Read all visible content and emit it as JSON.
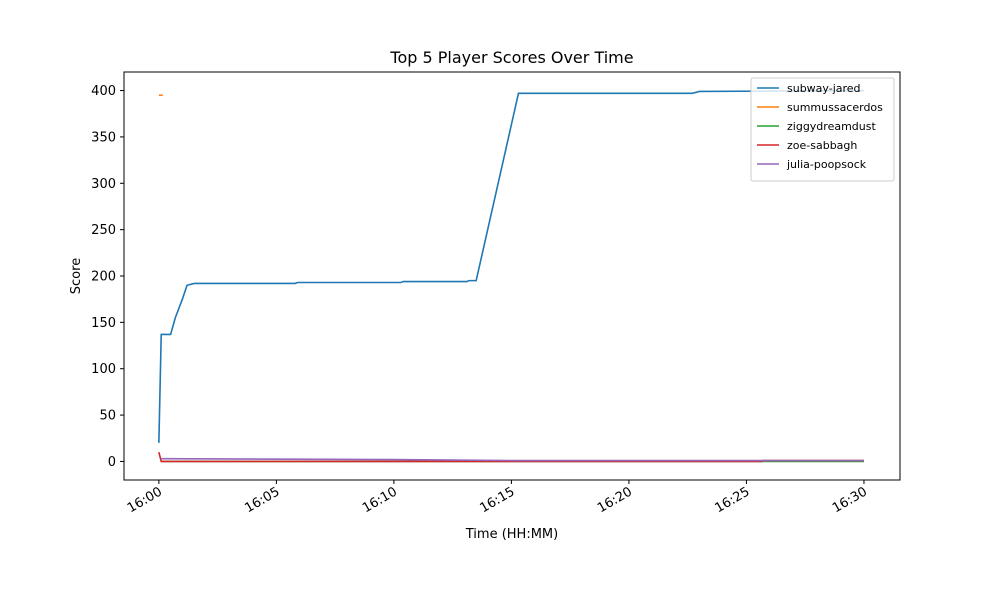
{
  "chart_data": {
    "type": "line",
    "title": "Top 5 Player Scores Over Time",
    "x_label": "Time (HH:MM)",
    "y_label": "Score",
    "xlim": [
      "15:58:31",
      "16:31:32"
    ],
    "ylim": [
      -20,
      420
    ],
    "xticks": [
      "16:00",
      "16:05",
      "16:10",
      "16:15",
      "16:20",
      "16:25",
      "16:30"
    ],
    "yticks": [
      0,
      50,
      100,
      150,
      200,
      250,
      300,
      350,
      400
    ],
    "legend": "upper right",
    "series": [
      {
        "name": "subway-jared",
        "color": "#1f77b4",
        "x": [
          "16:00:00",
          "16:00:06",
          "16:00:30",
          "16:00:42",
          "16:01:00",
          "16:01:12",
          "16:01:30",
          "16:05:48",
          "16:05:54",
          "16:10:18",
          "16:10:24",
          "16:13:06",
          "16:13:12",
          "16:13:30",
          "16:15:18",
          "16:22:42",
          "16:23:00",
          "16:30:00"
        ],
        "values": [
          20,
          137,
          137,
          155,
          175,
          190,
          192,
          192,
          193,
          193,
          194,
          194,
          195,
          195,
          397,
          397,
          399,
          400
        ]
      },
      {
        "name": "summussacerdos",
        "color": "#ff7f0e",
        "x": [
          "16:00:00",
          "16:00:10"
        ],
        "values": [
          395,
          395
        ]
      },
      {
        "name": "ziggydreamdust",
        "color": "#2ca02c",
        "x": [
          "16:00:06",
          "16:30:00"
        ],
        "values": [
          0,
          0
        ]
      },
      {
        "name": "zoe-sabbagh",
        "color": "#d62728",
        "x": [
          "16:00:00",
          "16:00:06",
          "16:25:40",
          "16:25:42",
          "16:30:00"
        ],
        "values": [
          10,
          0,
          0,
          1,
          1
        ]
      },
      {
        "name": "julia-poopsock",
        "color": "#9467bd",
        "x": [
          "16:00:06",
          "16:10:00",
          "16:15:00",
          "16:30:00"
        ],
        "values": [
          3,
          2,
          1,
          1
        ]
      }
    ]
  }
}
